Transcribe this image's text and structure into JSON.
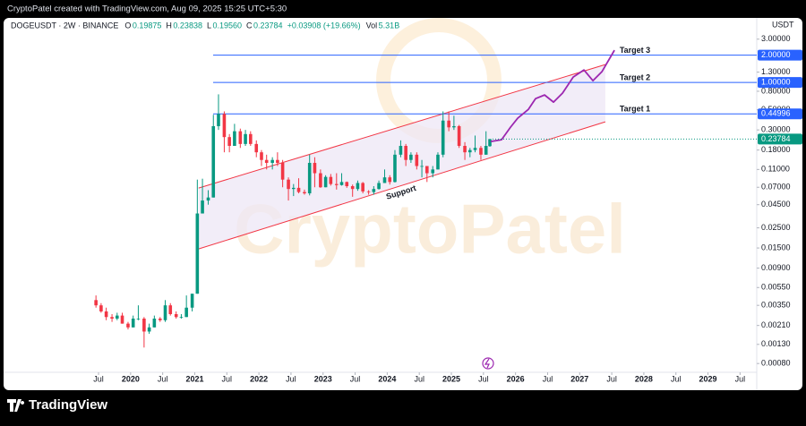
{
  "header": {
    "snapshot": "CryptoPatel created with TradingView.com, Aug 09, 2025 15:25 UTC+5:30",
    "symbol": "DOGEUSDT · 2W · BINANCE",
    "ohlc": [
      {
        "label": "O",
        "value": "0.19875"
      },
      {
        "label": "H",
        "value": "0.23838"
      },
      {
        "label": "L",
        "value": "0.19560"
      },
      {
        "label": "C",
        "value": "0.23784"
      }
    ],
    "change": "+0.03908 (+19.66%)",
    "volume_label": "Vol",
    "volume": "5.31B"
  },
  "chart_data": {
    "type": "candlestick",
    "log_scale": true,
    "currency": "USDT",
    "watermark": "CryptoPatel",
    "up_color": "#089981",
    "down_color": "#f23645",
    "x": [
      2019.46,
      2019.54,
      2019.62,
      2019.71,
      2019.79,
      2019.87,
      2019.96,
      2020.04,
      2020.12,
      2020.21,
      2020.29,
      2020.37,
      2020.46,
      2020.54,
      2020.62,
      2020.71,
      2020.79,
      2020.87,
      2020.96,
      2021.04,
      2021.12,
      2021.21,
      2021.29,
      2021.37,
      2021.46,
      2021.54,
      2021.62,
      2021.71,
      2021.79,
      2021.87,
      2021.96,
      2022.04,
      2022.12,
      2022.21,
      2022.29,
      2022.37,
      2022.46,
      2022.54,
      2022.62,
      2022.71,
      2022.79,
      2022.87,
      2022.96,
      2023.04,
      2023.12,
      2023.21,
      2023.29,
      2023.37,
      2023.46,
      2023.54,
      2023.62,
      2023.71,
      2023.79,
      2023.87,
      2023.96,
      2024.04,
      2024.12,
      2024.21,
      2024.29,
      2024.37,
      2024.46,
      2024.54,
      2024.62,
      2024.71,
      2024.79,
      2024.87,
      2024.96,
      2025.04,
      2025.12,
      2025.21,
      2025.29,
      2025.37,
      2025.46,
      2025.54,
      2025.6
    ],
    "open": [
      0.004,
      0.0035,
      0.003,
      0.0026,
      0.0025,
      0.0027,
      0.0022,
      0.002,
      0.0025,
      0.0025,
      0.0018,
      0.002,
      0.0025,
      0.0024,
      0.0035,
      0.0028,
      0.0026,
      0.0026,
      0.0033,
      0.0047,
      0.036,
      0.05,
      0.054,
      0.33,
      0.45,
      0.25,
      0.2,
      0.29,
      0.21,
      0.27,
      0.21,
      0.17,
      0.14,
      0.13,
      0.14,
      0.13,
      0.085,
      0.067,
      0.069,
      0.062,
      0.06,
      0.13,
      0.1,
      0.07,
      0.091,
      0.076,
      0.074,
      0.08,
      0.072,
      0.067,
      0.078,
      0.063,
      0.062,
      0.067,
      0.078,
      0.09,
      0.08,
      0.16,
      0.2,
      0.14,
      0.16,
      0.12,
      0.12,
      0.1,
      0.11,
      0.16,
      0.38,
      0.32,
      0.33,
      0.2,
      0.17,
      0.18,
      0.19,
      0.16,
      0.19875
    ],
    "high": [
      0.0045,
      0.0037,
      0.0033,
      0.0028,
      0.0029,
      0.0029,
      0.0023,
      0.0027,
      0.0035,
      0.0026,
      0.0022,
      0.0027,
      0.0026,
      0.004,
      0.0037,
      0.003,
      0.0028,
      0.0045,
      0.0047,
      0.085,
      0.087,
      0.065,
      0.44,
      0.74,
      0.48,
      0.27,
      0.35,
      0.31,
      0.3,
      0.29,
      0.23,
      0.18,
      0.16,
      0.15,
      0.17,
      0.14,
      0.09,
      0.076,
      0.088,
      0.066,
      0.16,
      0.15,
      0.11,
      0.095,
      0.098,
      0.1,
      0.1,
      0.081,
      0.075,
      0.083,
      0.08,
      0.065,
      0.072,
      0.083,
      0.11,
      0.095,
      0.18,
      0.23,
      0.21,
      0.17,
      0.17,
      0.14,
      0.12,
      0.12,
      0.17,
      0.48,
      0.48,
      0.43,
      0.34,
      0.22,
      0.19,
      0.26,
      0.2,
      0.29,
      0.23838
    ],
    "low": [
      0.0033,
      0.0029,
      0.0024,
      0.0023,
      0.0024,
      0.0022,
      0.0019,
      0.002,
      0.0024,
      0.0012,
      0.0017,
      0.002,
      0.0023,
      0.0023,
      0.0027,
      0.0025,
      0.0025,
      0.0026,
      0.003,
      0.0047,
      0.036,
      0.045,
      0.054,
      0.3,
      0.17,
      0.17,
      0.2,
      0.19,
      0.2,
      0.2,
      0.15,
      0.12,
      0.11,
      0.11,
      0.12,
      0.07,
      0.05,
      0.056,
      0.06,
      0.058,
      0.057,
      0.07,
      0.069,
      0.07,
      0.073,
      0.066,
      0.073,
      0.069,
      0.055,
      0.064,
      0.06,
      0.058,
      0.058,
      0.066,
      0.078,
      0.075,
      0.079,
      0.15,
      0.12,
      0.13,
      0.11,
      0.09,
      0.08,
      0.09,
      0.11,
      0.15,
      0.29,
      0.3,
      0.19,
      0.14,
      0.15,
      0.17,
      0.14,
      0.16,
      0.1956
    ],
    "close": [
      0.0035,
      0.003,
      0.0026,
      0.0025,
      0.0027,
      0.0022,
      0.002,
      0.0025,
      0.0025,
      0.0018,
      0.002,
      0.0025,
      0.0024,
      0.0035,
      0.0028,
      0.0026,
      0.0026,
      0.0033,
      0.0047,
      0.036,
      0.05,
      0.054,
      0.33,
      0.45,
      0.25,
      0.2,
      0.29,
      0.21,
      0.27,
      0.21,
      0.17,
      0.14,
      0.13,
      0.14,
      0.13,
      0.085,
      0.067,
      0.069,
      0.062,
      0.06,
      0.13,
      0.1,
      0.07,
      0.091,
      0.076,
      0.074,
      0.08,
      0.072,
      0.067,
      0.078,
      0.063,
      0.062,
      0.067,
      0.078,
      0.09,
      0.08,
      0.16,
      0.2,
      0.14,
      0.16,
      0.12,
      0.12,
      0.1,
      0.11,
      0.16,
      0.38,
      0.32,
      0.33,
      0.2,
      0.17,
      0.18,
      0.19,
      0.16,
      0.2,
      0.23784
    ],
    "xlim": [
      2018.02,
      2029.76
    ],
    "xticks": [
      {
        "value": 2019.5,
        "label": "Jul"
      },
      2020,
      {
        "value": 2020.5,
        "label": "Jul"
      },
      2021,
      {
        "value": 2021.5,
        "label": "Jul"
      },
      2022,
      {
        "value": 2022.5,
        "label": "Jul"
      },
      2023,
      {
        "value": 2023.5,
        "label": "Jul"
      },
      2024,
      {
        "value": 2024.5,
        "label": "Jul"
      },
      2025,
      {
        "value": 2025.5,
        "label": "Jul"
      },
      2026,
      {
        "value": 2026.5,
        "label": "Jul"
      },
      2027,
      {
        "value": 2027.5,
        "label": "Jul"
      },
      2028,
      {
        "value": 2028.5,
        "label": "Jul"
      },
      2029,
      {
        "value": 2029.5,
        "label": "Jul"
      }
    ],
    "ylim": [
      0.00064,
      4.1
    ],
    "yticks": [
      {
        "value": 3,
        "label": "3.00000"
      },
      {
        "value": 1.3,
        "label": "1.30000"
      },
      {
        "value": 0.8,
        "label": "0.80000"
      },
      {
        "value": 0.5,
        "label": "0.50000"
      },
      {
        "value": 0.3,
        "label": "0.30000"
      },
      {
        "value": 0.18,
        "label": "0.18000"
      },
      {
        "value": 0.11,
        "label": "0.11000"
      },
      {
        "value": 0.07,
        "label": "0.07000"
      },
      {
        "value": 0.045,
        "label": "0.04500"
      },
      {
        "value": 0.025,
        "label": "0.02500"
      },
      {
        "value": 0.015,
        "label": "0.01500"
      },
      {
        "value": 0.009,
        "label": "0.00900"
      },
      {
        "value": 0.0055,
        "label": "0.00550"
      },
      {
        "value": 0.0035,
        "label": "0.00350"
      },
      {
        "value": 0.0021,
        "label": "0.00210"
      },
      {
        "value": 0.0013,
        "label": "0.00130"
      },
      {
        "value": 0.0008,
        "label": "0.00080"
      }
    ],
    "price_lines": [
      {
        "name": "Target 3",
        "value": 2,
        "label": "2.00000",
        "color": "#2962ff"
      },
      {
        "name": "Target 2",
        "value": 1,
        "label": "1.00000",
        "color": "#2962ff"
      },
      {
        "name": "Target 1",
        "value": 0.44996,
        "label": "0.44996",
        "color": "#2962ff"
      }
    ],
    "last_price": {
      "value": 0.23784,
      "label": "0.23784",
      "color": "#089981"
    },
    "channel": {
      "label": "Support",
      "color": "#f23645",
      "fill": "#ede7f6",
      "upper": {
        "x": [
          2021.06,
          2027.4
        ],
        "y": [
          0.0686,
          1.575
        ]
      },
      "lower": {
        "x": [
          2021.06,
          2027.4
        ],
        "y": [
          0.01465,
          0.368
        ]
      }
    },
    "projection": {
      "color": "#9c27b0",
      "x": [
        2025.615,
        2025.782,
        2025.922,
        2026.034,
        2026.201,
        2026.313,
        2026.453,
        2026.592,
        2026.732,
        2026.899,
        2027.067,
        2027.207,
        2027.346,
        2027.542
      ],
      "y": [
        0.2234,
        0.2339,
        0.3214,
        0.4036,
        0.506,
        0.664,
        0.728,
        0.607,
        0.762,
        1.146,
        1.374,
        1.046,
        1.313,
        2.265
      ]
    }
  },
  "footer": {
    "brand": "TradingView"
  }
}
